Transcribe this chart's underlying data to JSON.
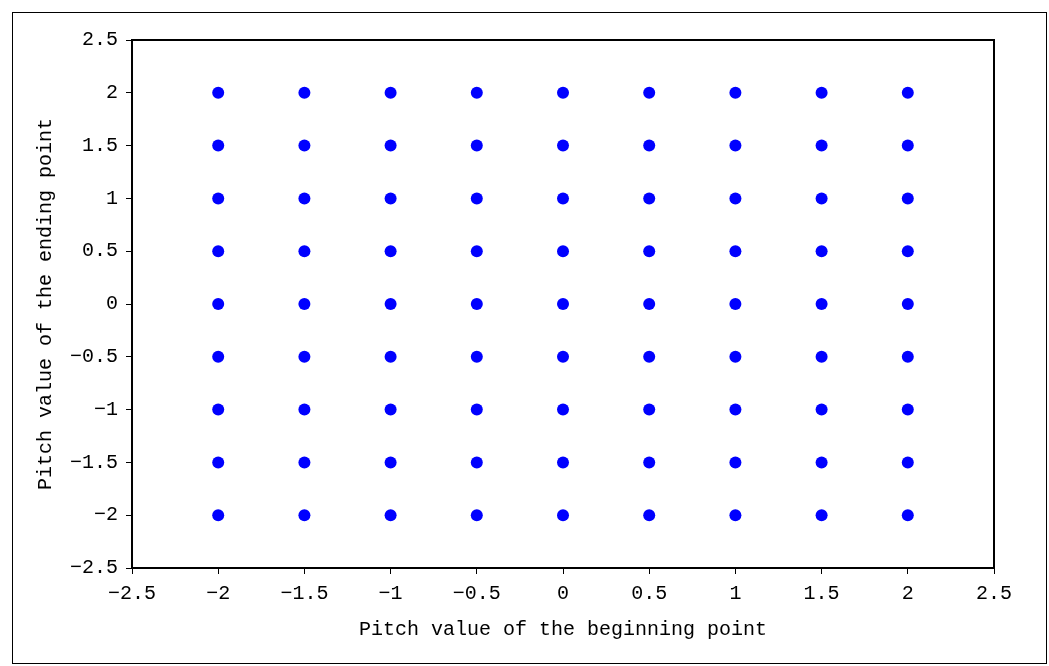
{
  "chart_data": {
    "type": "scatter",
    "xlabel": "Pitch value of the beginning point",
    "ylabel": "Pitch value of the ending point",
    "x": [
      -2,
      -2,
      -2,
      -2,
      -2,
      -2,
      -2,
      -2,
      -2,
      -1.5,
      -1.5,
      -1.5,
      -1.5,
      -1.5,
      -1.5,
      -1.5,
      -1.5,
      -1.5,
      -1,
      -1,
      -1,
      -1,
      -1,
      -1,
      -1,
      -1,
      -1,
      -0.5,
      -0.5,
      -0.5,
      -0.5,
      -0.5,
      -0.5,
      -0.5,
      -0.5,
      -0.5,
      0,
      0,
      0,
      0,
      0,
      0,
      0,
      0,
      0,
      0.5,
      0.5,
      0.5,
      0.5,
      0.5,
      0.5,
      0.5,
      0.5,
      0.5,
      1,
      1,
      1,
      1,
      1,
      1,
      1,
      1,
      1,
      1.5,
      1.5,
      1.5,
      1.5,
      1.5,
      1.5,
      1.5,
      1.5,
      1.5,
      2,
      2,
      2,
      2,
      2,
      2,
      2,
      2,
      2
    ],
    "series": [
      {
        "color": "#0000ff",
        "values": [
          -2,
          -1.5,
          -1,
          -0.5,
          0,
          0.5,
          1,
          1.5,
          2,
          -2,
          -1.5,
          -1,
          -0.5,
          0,
          0.5,
          1,
          1.5,
          2,
          -2,
          -1.5,
          -1,
          -0.5,
          0,
          0.5,
          1,
          1.5,
          2,
          -2,
          -1.5,
          -1,
          -0.5,
          0,
          0.5,
          1,
          1.5,
          2,
          -2,
          -1.5,
          -1,
          -0.5,
          0,
          0.5,
          1,
          1.5,
          2,
          -2,
          -1.5,
          -1,
          -0.5,
          0,
          0.5,
          1,
          1.5,
          2,
          -2,
          -1.5,
          -1,
          -0.5,
          0,
          0.5,
          1,
          1.5,
          2,
          -2,
          -1.5,
          -1,
          -0.5,
          0,
          0.5,
          1,
          1.5,
          2,
          -2,
          -1.5,
          -1,
          -0.5,
          0,
          0.5,
          1,
          1.5,
          2
        ]
      }
    ],
    "xlim": [
      -2.5,
      2.5
    ],
    "xticks": [
      -2.5,
      -2,
      -1.5,
      -1,
      -0.5,
      0,
      0.5,
      1,
      1.5,
      2,
      2.5
    ],
    "ylim": [
      -2.5,
      2.5
    ],
    "yticks": [
      -2.5,
      -2,
      -1.5,
      -1,
      -0.5,
      0,
      0.5,
      1,
      1.5,
      2,
      2.5
    ],
    "grid": false,
    "legend": false,
    "marker": "circle"
  }
}
